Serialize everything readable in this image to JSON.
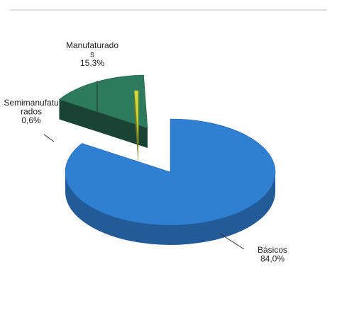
{
  "chart_data": {
    "type": "pie",
    "exploded": true,
    "three_d": true,
    "slices": [
      {
        "label_lines": [
          "Básicos",
          "84,0%"
        ],
        "category": "Básicos",
        "value": 84.0,
        "percent_text": "84,0%",
        "color": "#2f7fd3"
      },
      {
        "label_lines": [
          "Manufaturado",
          "s",
          "15,3%"
        ],
        "category": "Manufaturados",
        "value": 15.3,
        "percent_text": "15,3%",
        "color": "#2e7a5e"
      },
      {
        "label_lines": [
          "Semimanufatu",
          "rados",
          "0,6%"
        ],
        "category": "Semimanufaturados",
        "value": 0.6,
        "percent_text": "0,6%",
        "color": "#cfd63a"
      }
    ]
  }
}
